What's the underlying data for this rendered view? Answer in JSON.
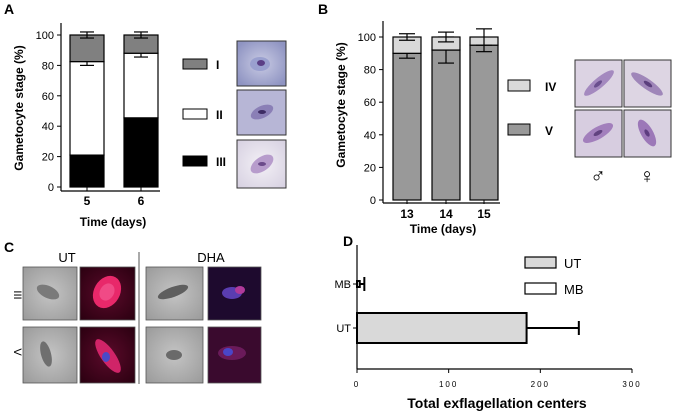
{
  "panels": [
    {
      "id": "A",
      "label": "A"
    },
    {
      "id": "B",
      "label": "B"
    },
    {
      "id": "C",
      "label": "C"
    },
    {
      "id": "D",
      "label": "D"
    }
  ],
  "colors": {
    "stage_I": "#808080",
    "stage_II": "#ffffff",
    "stage_III": "#000000",
    "stage_IV": "#d9d9d9",
    "stage_V": "#999999",
    "ut_bar": "#d9d9d9",
    "mb_bar": "#ffffff"
  },
  "chart_data": [
    {
      "panel": "A",
      "type": "bar",
      "stacked": true,
      "categories": [
        "5",
        "6"
      ],
      "series": [
        {
          "name": "III",
          "values": [
            21,
            45.5
          ],
          "errors": [
            3,
            3
          ]
        },
        {
          "name": "II",
          "values": [
            61.5,
            42.5
          ],
          "errors": [
            2.5,
            2.5
          ]
        },
        {
          "name": "I",
          "values": [
            17.5,
            12
          ],
          "errors": [
            2,
            2
          ]
        }
      ],
      "xlabel": "Time (days)",
      "ylabel": "Gametocyte stage (%)",
      "ylim": [
        0,
        100
      ],
      "yticks": [
        "0",
        "20",
        "40",
        "60",
        "80",
        "100"
      ],
      "legend": [
        "I",
        "II",
        "III"
      ],
      "legend_position": "right"
    },
    {
      "panel": "B",
      "type": "bar",
      "stacked": true,
      "categories": [
        "13",
        "14",
        "15"
      ],
      "series": [
        {
          "name": "V",
          "values": [
            90,
            92,
            95
          ],
          "errors": [
            3,
            8,
            4
          ]
        },
        {
          "name": "IV",
          "values": [
            10,
            8,
            5
          ],
          "errors": [
            2,
            3,
            5
          ]
        }
      ],
      "xlabel": "Time (days)",
      "ylabel": "Gametocyte stage (%)",
      "ylim": [
        0,
        100
      ],
      "yticks": [
        "0",
        "20",
        "40",
        "60",
        "80",
        "100"
      ],
      "legend": [
        "IV",
        "V"
      ],
      "legend_position": "right"
    },
    {
      "panel": "D",
      "type": "bar",
      "orientation": "horizontal",
      "categories": [
        "UT",
        "MB"
      ],
      "values": [
        185,
        3
      ],
      "errors": [
        57,
        5
      ],
      "xlabel": "Total exflagellation centers",
      "xlim": [
        0,
        300
      ],
      "xticks": [
        "0",
        "100",
        "200",
        "300"
      ],
      "legend": [
        "UT",
        "MB"
      ],
      "legend_position": "top-right"
    }
  ],
  "panelC": {
    "col_headers": [
      "UT",
      "DHA"
    ],
    "row_labels": [
      "III",
      "V"
    ]
  },
  "panelB_symbols": {
    "male": "♂",
    "female": "♀"
  }
}
